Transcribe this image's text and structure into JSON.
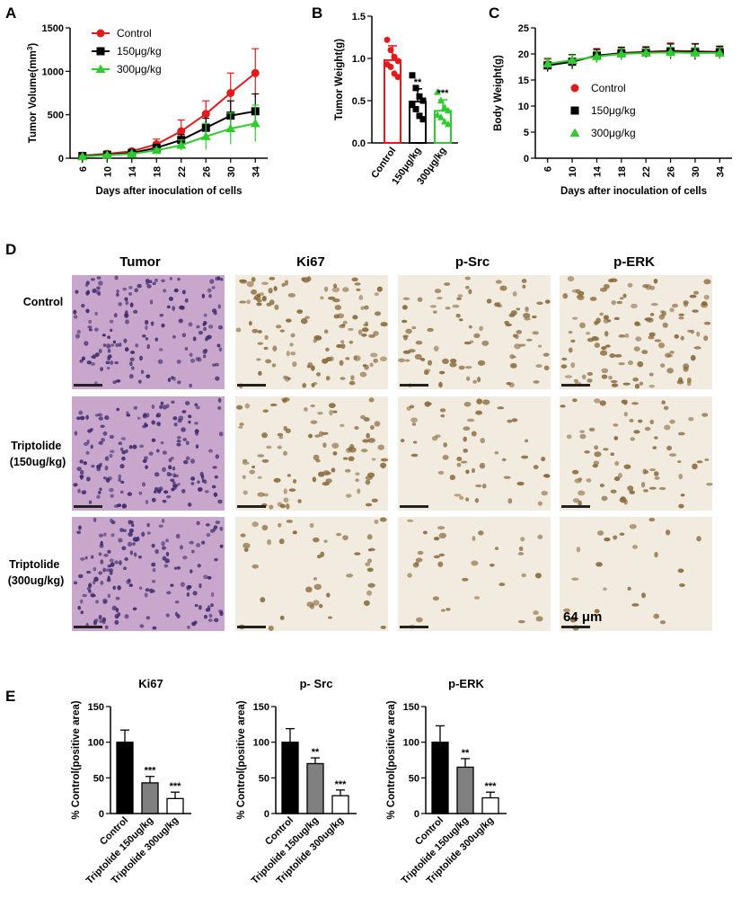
{
  "figure": {
    "panel_labels": [
      "A",
      "B",
      "C",
      "D",
      "E"
    ],
    "colors": {
      "control": "#e31a1c",
      "low": "#000000",
      "high": "#2ecc2e"
    },
    "tissue": {
      "columns": [
        "Tumor",
        "Ki67",
        "p-Src",
        "p-ERK"
      ],
      "rows": [
        "Control",
        "Triptolide\n(150ug/kg)",
        "Triptolide\n(300ug/kg)"
      ],
      "row_lines": [
        [
          "Control"
        ],
        [
          "Triptolide",
          "(150ug/kg)"
        ],
        [
          "Triptolide",
          "(300ug/kg)"
        ]
      ],
      "scale_label": "64 μm",
      "stain_colors": {
        "he_bg": "#c9a6cc",
        "he_nuc": "#3b2a6b",
        "ihc_bg": "#f1ebe0",
        "ihc_nuc": "#8a6a3c"
      }
    }
  },
  "chart_data": [
    {
      "id": "A",
      "type": "line",
      "x": [
        6,
        10,
        14,
        18,
        22,
        26,
        30,
        34
      ],
      "xlabel": "Days after inoculation of cells",
      "ylabel": "Tumor Volume(mm3)",
      "ylim": [
        0,
        1500
      ],
      "yticks": [
        0,
        500,
        1000,
        1500
      ],
      "legend_position": "top-left",
      "series": [
        {
          "name": "Control",
          "color": "#e31a1c",
          "marker": "circle",
          "values": [
            30,
            50,
            80,
            160,
            310,
            510,
            750,
            980
          ],
          "errors": [
            10,
            15,
            20,
            60,
            130,
            150,
            230,
            280
          ]
        },
        {
          "name": "150μg/kg",
          "color": "#000000",
          "marker": "square",
          "values": [
            25,
            40,
            60,
            120,
            210,
            350,
            490,
            540
          ],
          "errors": [
            8,
            10,
            15,
            30,
            60,
            110,
            170,
            200
          ]
        },
        {
          "name": "300μg/kg",
          "color": "#2ecc2e",
          "marker": "triangle",
          "values": [
            20,
            35,
            50,
            90,
            150,
            250,
            340,
            400
          ],
          "errors": [
            8,
            10,
            15,
            20,
            60,
            150,
            180,
            210
          ]
        }
      ]
    },
    {
      "id": "B",
      "type": "bar",
      "categories": [
        "Control",
        "150μg/kg",
        "300μg/kg"
      ],
      "values": [
        0.98,
        0.49,
        0.38
      ],
      "errors": [
        0.17,
        0.15,
        0.13
      ],
      "significance": [
        "",
        "**",
        "***"
      ],
      "colors": [
        "#e31a1c",
        "#000000",
        "#2ecc2e"
      ],
      "points": [
        [
          1.22,
          1.1,
          1.02,
          0.97,
          0.93,
          0.9,
          0.82,
          0.78
        ],
        [
          0.8,
          0.65,
          0.55,
          0.5,
          0.45,
          0.4,
          0.32,
          0.28
        ],
        [
          0.6,
          0.5,
          0.42,
          0.38,
          0.33,
          0.3,
          0.25,
          0.22
        ]
      ],
      "ylabel": "Tumor Weight(g)",
      "ylim": [
        0,
        1.5
      ],
      "yticks": [
        0.0,
        0.5,
        1.0,
        1.5
      ],
      "ytick_labels": [
        "0.0",
        "0.5",
        "1.0",
        "1.5"
      ]
    },
    {
      "id": "C",
      "type": "line",
      "x": [
        6,
        10,
        14,
        18,
        22,
        26,
        30,
        34
      ],
      "xlabel": "Days after inoculation of cells",
      "ylabel": "Body Weight(g)",
      "ylim": [
        0,
        25
      ],
      "yticks": [
        0,
        5,
        10,
        15,
        20,
        25
      ],
      "legend_position": "center-left",
      "series": [
        {
          "name": "Control",
          "color": "#e31a1c",
          "marker": "circle",
          "values": [
            18.0,
            18.6,
            19.6,
            20.2,
            20.4,
            20.6,
            20.5,
            20.4
          ],
          "errors": [
            1.2,
            1.2,
            1.2,
            1.0,
            1.0,
            1.5,
            1.5,
            1.0
          ]
        },
        {
          "name": "150μg/kg",
          "color": "#000000",
          "marker": "square",
          "values": [
            17.8,
            18.5,
            19.7,
            20.1,
            20.3,
            20.5,
            20.4,
            20.3
          ],
          "errors": [
            1.2,
            1.4,
            1.3,
            1.2,
            1.0,
            1.4,
            1.5,
            1.2
          ]
        },
        {
          "name": "300μg/kg",
          "color": "#2ecc2e",
          "marker": "triangle",
          "values": [
            18.1,
            18.8,
            19.5,
            20.0,
            20.2,
            20.3,
            20.2,
            20.2
          ],
          "errors": [
            1.0,
            1.0,
            1.0,
            1.0,
            0.8,
            1.0,
            1.0,
            1.0
          ]
        }
      ]
    },
    {
      "id": "E1",
      "type": "bar",
      "title": "Ki67",
      "categories": [
        "Control",
        "Triptolide 150ug/kg",
        "Triptolide 300ug/kg"
      ],
      "values": [
        100,
        43,
        21
      ],
      "errors": [
        17,
        9,
        9
      ],
      "significance": [
        "",
        "***",
        "***"
      ],
      "fills": [
        "#000000",
        "#808080",
        "#ffffff"
      ],
      "ylabel": "% Control(positive area)",
      "ylim": [
        0,
        150
      ],
      "yticks": [
        0,
        50,
        100,
        150
      ]
    },
    {
      "id": "E2",
      "type": "bar",
      "title": "p- Src",
      "categories": [
        "Control",
        "Triptolide 150ug/kg",
        "Triptolide 300ug/kg"
      ],
      "values": [
        100,
        70,
        25
      ],
      "errors": [
        19,
        8,
        8
      ],
      "significance": [
        "",
        "**",
        "***"
      ],
      "fills": [
        "#000000",
        "#808080",
        "#ffffff"
      ],
      "ylabel": "% Control(positive area)",
      "ylim": [
        0,
        150
      ],
      "yticks": [
        0,
        50,
        100,
        150
      ]
    },
    {
      "id": "E3",
      "type": "bar",
      "title": "p-ERK",
      "categories": [
        "Control",
        "Triptolide 150ug/kg",
        "Triptolide 300ug/kg"
      ],
      "values": [
        100,
        65,
        22
      ],
      "errors": [
        23,
        12,
        8
      ],
      "significance": [
        "",
        "**",
        "***"
      ],
      "fills": [
        "#000000",
        "#808080",
        "#ffffff"
      ],
      "ylabel": "% Control(positive area)",
      "ylim": [
        0,
        150
      ],
      "yticks": [
        0,
        50,
        100,
        150
      ]
    }
  ]
}
